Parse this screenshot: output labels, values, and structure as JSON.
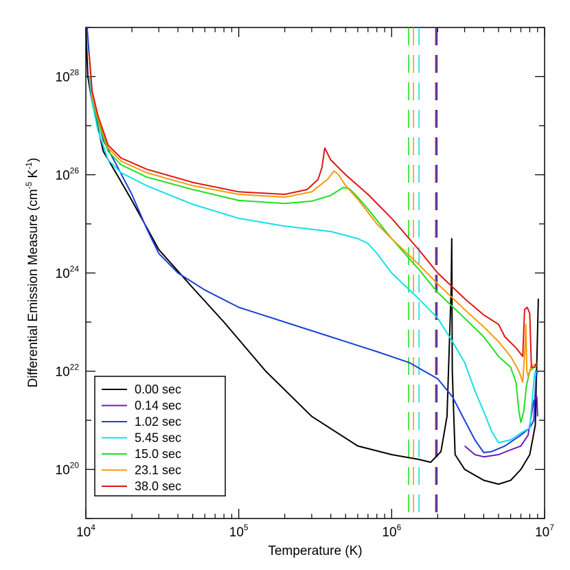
{
  "chart_data": {
    "type": "line",
    "xlabel": "Temperature (K)",
    "ylabel": {
      "prefix": "Differential Emission Measure (cm",
      "sup1": "-5",
      "mid": " K",
      "sup2": "-1",
      "suffix": ")"
    },
    "x_scale": "log",
    "y_scale": "log",
    "xlim": [
      10000,
      10000000
    ],
    "ylim": [
      1e+19,
      1e+29
    ],
    "x_ticks": [
      {
        "value": 10000,
        "base": "10",
        "exp": "4"
      },
      {
        "value": 100000,
        "base": "10",
        "exp": "5"
      },
      {
        "value": 1000000,
        "base": "10",
        "exp": "6"
      },
      {
        "value": 10000000,
        "base": "10",
        "exp": "7"
      }
    ],
    "y_ticks": [
      {
        "value": 1e+20,
        "base": "10",
        "exp": "20"
      },
      {
        "value": 1e+22,
        "base": "10",
        "exp": "22"
      },
      {
        "value": 1e+24,
        "base": "10",
        "exp": "24"
      },
      {
        "value": 1e+26,
        "base": "10",
        "exp": "26"
      },
      {
        "value": 1e+28,
        "base": "10",
        "exp": "28"
      }
    ],
    "legend_position": "bottom-left",
    "series": [
      {
        "name": "0.00 sec",
        "color": "#000000",
        "marker_T": 0,
        "points": [
          [
            10000,
            1e+29
          ],
          [
            10300,
            1e+28
          ],
          [
            11000,
            3e+27
          ],
          [
            13000,
            3e+26
          ],
          [
            16000,
            1e+26
          ],
          [
            20000,
            3e+25
          ],
          [
            30000,
            3e+24
          ],
          [
            50000,
            5e+23
          ],
          [
            80000,
            1e+23
          ],
          [
            150000,
            1e+22
          ],
          [
            300000,
            1.2e+21
          ],
          [
            600000,
            3e+20
          ],
          [
            1000000,
            2e+20
          ],
          [
            1500000,
            1.6e+20
          ],
          [
            1800000,
            1.4e+20
          ],
          [
            2100000,
            2.3e+20
          ],
          [
            2300000,
            1.2e+21
          ],
          [
            2450000,
            5e+23
          ],
          [
            2470000,
            5e+24
          ],
          [
            2490000,
            1e+22
          ],
          [
            2600000,
            2e+20
          ],
          [
            3000000,
            1e+20
          ],
          [
            4000000,
            6e+19
          ],
          [
            5000000,
            5e+19
          ],
          [
            6000000,
            6e+19
          ],
          [
            7000000,
            1e+20
          ],
          [
            8000000,
            2e+20
          ],
          [
            8700000,
            8e+20
          ],
          [
            9100000,
            3e+23
          ]
        ]
      },
      {
        "name": "0.14 sec",
        "color": "#6a1ab8",
        "marker_T": 1970000,
        "points": [
          [
            3000000,
            3e+20
          ],
          [
            3500000,
            2e+20
          ],
          [
            4000000,
            1.8e+20
          ],
          [
            5000000,
            2e+20
          ],
          [
            6000000,
            2.5e+20
          ],
          [
            7000000,
            3e+20
          ],
          [
            7800000,
            5e+20
          ],
          [
            8500000,
            2.5e+21
          ],
          [
            8900000,
            3e+21
          ],
          [
            9000000,
            1.2e+21
          ]
        ]
      },
      {
        "name": "1.02 sec",
        "color": "#1b3fd6",
        "marker_T": 1980000,
        "points": [
          [
            10200,
            1e+29
          ],
          [
            11000,
            4e+27
          ],
          [
            13000,
            5e+26
          ],
          [
            16000,
            1.5e+26
          ],
          [
            20000,
            4e+25
          ],
          [
            25000,
            8e+24
          ],
          [
            30000,
            2.5e+24
          ],
          [
            40000,
            1e+24
          ],
          [
            60000,
            4.5e+23
          ],
          [
            100000,
            2e+23
          ],
          [
            200000,
            1e+23
          ],
          [
            400000,
            5e+22
          ],
          [
            800000,
            2.5e+22
          ],
          [
            1300000,
            1.5e+22
          ],
          [
            2000000,
            7e+21
          ],
          [
            2500000,
            3e+21
          ],
          [
            3000000,
            1e+21
          ],
          [
            3500000,
            4e+20
          ],
          [
            4000000,
            2.2e+20
          ],
          [
            4500000,
            2.3e+20
          ],
          [
            5500000,
            3e+20
          ],
          [
            7000000,
            5e+20
          ],
          [
            8000000,
            7e+20
          ],
          [
            8500000,
            1e+21
          ],
          [
            8800000,
            8e+21
          ],
          [
            9000000,
            1e+22
          ]
        ]
      },
      {
        "name": "5.45 sec",
        "color": "#11e0e8",
        "marker_T": 1510000,
        "points": [
          [
            10500,
            1e+28
          ],
          [
            11000,
            3e+27
          ],
          [
            12000,
            8e+26
          ],
          [
            14000,
            2e+26
          ],
          [
            17000,
            1.1e+26
          ],
          [
            25000,
            6e+25
          ],
          [
            50000,
            2.5e+25
          ],
          [
            100000,
            1.3e+25
          ],
          [
            200000,
            9e+24
          ],
          [
            400000,
            7e+24
          ],
          [
            600000,
            5e+24
          ],
          [
            700000,
            4e+24
          ],
          [
            800000,
            2.5e+24
          ],
          [
            1000000,
            1e+24
          ],
          [
            1500000,
            3e+23
          ],
          [
            2000000,
            1.2e+23
          ],
          [
            2500000,
            4e+22
          ],
          [
            3000000,
            1.5e+22
          ],
          [
            3500000,
            4e+21
          ],
          [
            4000000,
            1.5e+21
          ],
          [
            4500000,
            6e+20
          ],
          [
            5000000,
            3.5e+20
          ],
          [
            6000000,
            4e+20
          ],
          [
            7000000,
            5.5e+20
          ],
          [
            8000000,
            7e+20
          ],
          [
            8600000,
            9e+21
          ],
          [
            8900000,
            1e+22
          ]
        ]
      },
      {
        "name": "15.0 sec",
        "color": "#1fe01f",
        "marker_T": 1290000,
        "points": [
          [
            10500,
            3e+28
          ],
          [
            11000,
            4e+27
          ],
          [
            12000,
            1.2e+27
          ],
          [
            14000,
            3e+26
          ],
          [
            17000,
            1.6e+26
          ],
          [
            25000,
            9e+25
          ],
          [
            50000,
            5e+25
          ],
          [
            100000,
            3e+25
          ],
          [
            200000,
            2.6e+25
          ],
          [
            300000,
            2.9e+25
          ],
          [
            400000,
            3.8e+25
          ],
          [
            480000,
            5.5e+25
          ],
          [
            530000,
            5.2e+25
          ],
          [
            600000,
            3.5e+25
          ],
          [
            700000,
            2e+25
          ],
          [
            1000000,
            5e+24
          ],
          [
            1500000,
            1.2e+24
          ],
          [
            2000000,
            4e+23
          ],
          [
            3000000,
            1.2e+23
          ],
          [
            4000000,
            5e+22
          ],
          [
            5000000,
            2e+22
          ],
          [
            6000000,
            1.2e+22
          ],
          [
            6500000,
            6e+21
          ],
          [
            6800000,
            1.5e+21
          ],
          [
            7000000,
            9e+20
          ],
          [
            7300000,
            1.5e+21
          ],
          [
            7600000,
            5e+21
          ],
          [
            8000000,
            1e+22
          ],
          [
            8500000,
            1.2e+22
          ],
          [
            8900000,
            1.3e+22
          ]
        ]
      },
      {
        "name": "23.1 sec",
        "color": "#f59a0a",
        "marker_T": 1390000,
        "points": [
          [
            10500,
            3e+28
          ],
          [
            11000,
            4e+27
          ],
          [
            12000,
            1.4e+27
          ],
          [
            14000,
            3.5e+26
          ],
          [
            17000,
            1.9e+26
          ],
          [
            25000,
            1.1e+26
          ],
          [
            50000,
            6e+25
          ],
          [
            100000,
            4e+25
          ],
          [
            200000,
            3.5e+25
          ],
          [
            300000,
            4.5e+25
          ],
          [
            380000,
            8e+25
          ],
          [
            420000,
            1.2e+26
          ],
          [
            450000,
            1e+26
          ],
          [
            500000,
            6e+25
          ],
          [
            600000,
            3.2e+25
          ],
          [
            800000,
            1e+25
          ],
          [
            1000000,
            5e+24
          ],
          [
            1500000,
            1.5e+24
          ],
          [
            2000000,
            6e+23
          ],
          [
            3000000,
            1.8e+23
          ],
          [
            4000000,
            8e+22
          ],
          [
            5000000,
            4e+22
          ],
          [
            6000000,
            2e+22
          ],
          [
            6800000,
            1e+22
          ],
          [
            7200000,
            6e+21
          ],
          [
            7450000,
            3e+22
          ],
          [
            7550000,
            9e+22
          ],
          [
            7650000,
            1e+22
          ],
          [
            7800000,
            8e+21
          ],
          [
            8200000,
            1.3e+22
          ],
          [
            8900000,
            1.4e+22
          ]
        ]
      },
      {
        "name": "38.0 sec",
        "color": "#e01414",
        "marker_T": 1940000,
        "points": [
          [
            10500,
            3e+28
          ],
          [
            11000,
            5e+27
          ],
          [
            12000,
            1.6e+27
          ],
          [
            14000,
            4e+26
          ],
          [
            17000,
            2.2e+26
          ],
          [
            25000,
            1.3e+26
          ],
          [
            50000,
            7e+25
          ],
          [
            100000,
            4.5e+25
          ],
          [
            200000,
            4e+25
          ],
          [
            280000,
            5e+25
          ],
          [
            330000,
            8e+25
          ],
          [
            350000,
            1.4e+26
          ],
          [
            365000,
            3.5e+26
          ],
          [
            400000,
            2e+26
          ],
          [
            500000,
            1e+26
          ],
          [
            700000,
            4e+25
          ],
          [
            1000000,
            1.3e+25
          ],
          [
            1500000,
            3e+24
          ],
          [
            2000000,
            1e+24
          ],
          [
            3000000,
            3e+23
          ],
          [
            4000000,
            1.4e+23
          ],
          [
            5000000,
            9e+22
          ],
          [
            5500000,
            5e+22
          ],
          [
            6500000,
            3e+22
          ],
          [
            7200000,
            2e+22
          ],
          [
            7400000,
            1.8e+23
          ],
          [
            7700000,
            2e+23
          ],
          [
            8000000,
            1.5e+23
          ],
          [
            8200000,
            1.2e+22
          ],
          [
            8600000,
            1.2e+22
          ],
          [
            8900000,
            1.5e+22
          ]
        ]
      }
    ]
  }
}
